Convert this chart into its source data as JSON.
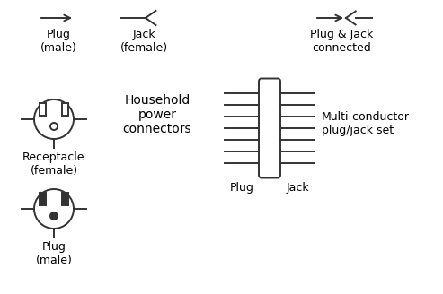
{
  "bg_color": "#ffffff",
  "line_color": "#333333",
  "text_color": "#000000",
  "figsize": [
    4.93,
    3.28
  ],
  "dpi": 100,
  "labels": {
    "plug_male_top": "Plug\n(male)",
    "jack_female_top": "Jack\n(female)",
    "plug_jack_connected": "Plug & Jack\nconnected",
    "receptacle_female": "Receptacle\n(female)",
    "household": "Household\npower\nconnectors",
    "plug_male_bottom": "Plug\n(male)",
    "plug_label": "Plug",
    "jack_label": "Jack",
    "multi_conductor": "Multi-conductor\nplug/jack set"
  }
}
